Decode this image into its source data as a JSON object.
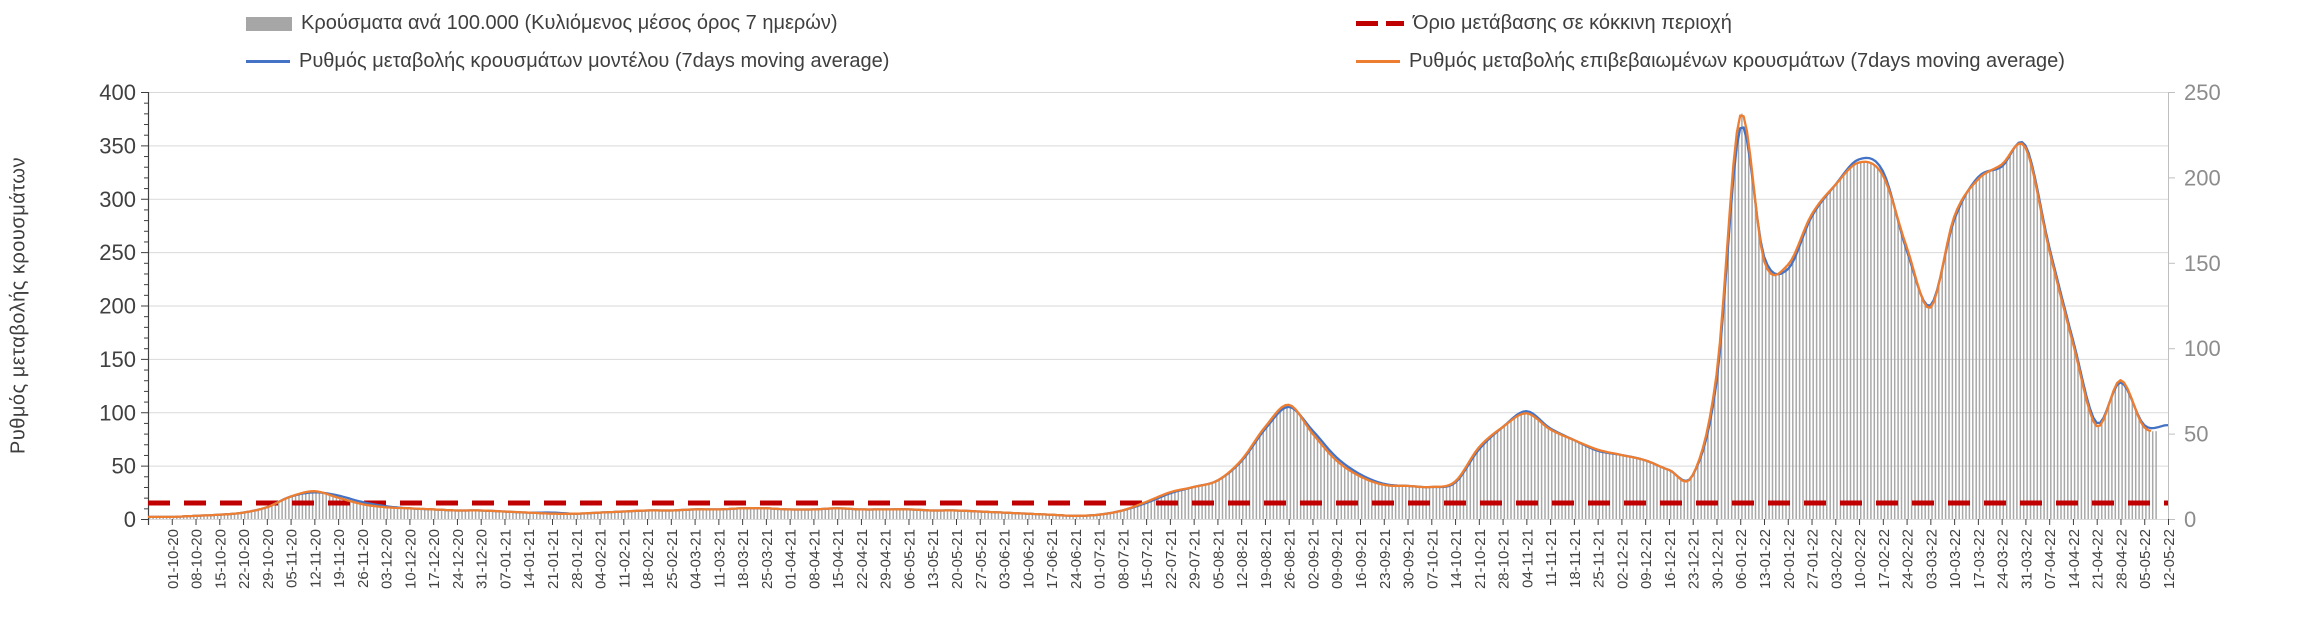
{
  "legend": {
    "items": [
      {
        "id": "cases-per-100k",
        "label": "Κρούσματα ανά 100.000 (Κυλιόμενος μέσος όρος 7 ημερών)",
        "swatch": "bar",
        "color": "#a6a6a6"
      },
      {
        "id": "model-rate",
        "label": "Ρυθμός μεταβολής κρουσμάτων μοντέλου (7days moving average)",
        "swatch": "line",
        "color": "#4472c4"
      },
      {
        "id": "red-zone-threshold",
        "label": "Όριο μετάβασης σε κόκκινη περιοχή",
        "swatch": "dash",
        "color": "#c00000"
      },
      {
        "id": "confirmed-rate",
        "label": "Ρυθμός μεταβολής επιβεβαιωμένων κρουσμάτων (7days moving average)",
        "swatch": "line",
        "color": "#ed7d31"
      }
    ]
  },
  "y_axis_left": {
    "title": "Ρυθμός μεταβολής κρουσμάτων",
    "min": 0,
    "max": 400,
    "step": 50,
    "ticks": [
      "0",
      "50",
      "100",
      "150",
      "200",
      "250",
      "300",
      "350",
      "400"
    ]
  },
  "y_axis_right": {
    "min": 0,
    "max": 250,
    "step": 50,
    "ticks": [
      "0",
      "50",
      "100",
      "150",
      "200",
      "250"
    ]
  },
  "chart_data": {
    "type": "combo",
    "title": "",
    "xlabel": "",
    "ylabel": "Ρυθμός μεταβολής κρουσμάτων",
    "ylim_left": [
      0,
      400
    ],
    "ylim_right": [
      0,
      250
    ],
    "grid": true,
    "legend_position": "top",
    "x_sampling": "weekly",
    "x": [
      "01-10-20",
      "08-10-20",
      "15-10-20",
      "22-10-20",
      "29-10-20",
      "05-11-20",
      "12-11-20",
      "19-11-20",
      "26-11-20",
      "03-12-20",
      "10-12-20",
      "17-12-20",
      "24-12-20",
      "31-12-20",
      "07-01-21",
      "14-01-21",
      "21-01-21",
      "28-01-21",
      "04-02-21",
      "11-02-21",
      "18-02-21",
      "25-02-21",
      "04-03-21",
      "11-03-21",
      "18-03-21",
      "25-03-21",
      "01-04-21",
      "08-04-21",
      "15-04-21",
      "22-04-21",
      "29-04-21",
      "06-05-21",
      "13-05-21",
      "20-05-21",
      "27-05-21",
      "03-06-21",
      "10-06-21",
      "17-06-21",
      "24-06-21",
      "01-07-21",
      "08-07-21",
      "15-07-21",
      "22-07-21",
      "29-07-21",
      "05-08-21",
      "12-08-21",
      "19-08-21",
      "26-08-21",
      "02-09-21",
      "09-09-21",
      "16-09-21",
      "23-09-21",
      "30-09-21",
      "07-10-21",
      "14-10-21",
      "21-10-21",
      "28-10-21",
      "04-11-21",
      "11-11-21",
      "18-11-21",
      "25-11-21",
      "02-12-21",
      "09-12-21",
      "16-12-21",
      "23-12-21",
      "30-12-21",
      "06-01-22",
      "13-01-22",
      "20-01-22",
      "27-01-22",
      "03-02-22",
      "10-02-22",
      "17-02-22",
      "24-02-22",
      "03-03-22",
      "10-03-22",
      "17-03-22",
      "24-03-22",
      "31-03-22",
      "07-04-22",
      "14-04-22",
      "21-04-22",
      "28-04-22",
      "05-05-22",
      "12-05-22"
    ],
    "series": [
      {
        "name": "Κρούσματα ανά 100.000 (Κυλιόμενος μέσος όρος 7 ημερών)",
        "type": "bar",
        "axis": "right",
        "color": "#a8a8a8",
        "values": [
          1.3,
          1.9,
          2.5,
          3.8,
          6.9,
          13.1,
          16.3,
          12.5,
          8.8,
          6.9,
          6.3,
          5.6,
          5,
          5,
          4.4,
          3.8,
          3.1,
          3.1,
          3.8,
          4.4,
          5,
          5,
          5.6,
          5.6,
          6.3,
          6.3,
          5.6,
          5.6,
          6.3,
          5.6,
          5.6,
          5.6,
          5,
          5,
          4.4,
          3.8,
          3.1,
          2.5,
          1.9,
          2.5,
          5,
          10,
          15.6,
          18.8,
          22.5,
          34.4,
          53.8,
          66.9,
          50,
          34.4,
          25,
          20,
          19.4,
          18.8,
          21.9,
          41.9,
          53.8,
          61.9,
          52.5,
          46.3,
          40.6,
          37.5,
          34.4,
          28.8,
          25.6,
          84.4,
          236.3,
          151.3,
          148.8,
          178.1,
          195.6,
          208.8,
          201.3,
          159.4,
          123.8,
          176.9,
          198.8,
          207.5,
          217.5,
          157.5,
          103.1,
          54.4,
          81.3,
          53.8,
          52.5
        ]
      },
      {
        "name": "Ρυθμός μεταβολής κρουσμάτων μοντέλου (7days moving average)",
        "type": "line",
        "axis": "left",
        "color": "#4472c4",
        "values": [
          2,
          3,
          4,
          6,
          11,
          21,
          25,
          22,
          16,
          12,
          10,
          9,
          8,
          8,
          7,
          6,
          6,
          5,
          6,
          7,
          8,
          8,
          9,
          9,
          10,
          10,
          9,
          9,
          10,
          9,
          9,
          9,
          8,
          8,
          7,
          6,
          5,
          4,
          3,
          4,
          8,
          15,
          24,
          30,
          36,
          54,
          84,
          105,
          83,
          58,
          42,
          33,
          31,
          30,
          34,
          65,
          86,
          101,
          85,
          74,
          64,
          60,
          55,
          46,
          41,
          128,
          366,
          246,
          234,
          283,
          313,
          337,
          326,
          252,
          200,
          280,
          320,
          330,
          350,
          255,
          168,
          90,
          128,
          88,
          88
        ]
      },
      {
        "name": "Ρυθμός μεταβολής επιβεβαιωμένων κρουσμάτων (7days moving average)",
        "type": "line",
        "axis": "left",
        "color": "#ed7d31",
        "values": [
          2,
          3,
          4,
          6,
          11,
          21,
          26,
          20,
          14,
          11,
          10,
          9,
          8,
          8,
          7,
          6,
          5,
          5,
          6,
          7,
          8,
          8,
          9,
          9,
          10,
          10,
          9,
          9,
          10,
          9,
          9,
          9,
          8,
          8,
          7,
          6,
          5,
          4,
          3,
          4,
          8,
          16,
          25,
          30,
          36,
          55,
          86,
          107,
          80,
          55,
          40,
          32,
          31,
          30,
          35,
          67,
          86,
          99,
          84,
          74,
          65,
          60,
          55,
          46,
          41,
          135,
          378,
          242,
          238,
          285,
          313,
          334,
          322,
          255,
          198,
          283,
          318,
          332,
          348,
          252,
          165,
          87,
          130,
          86,
          84
        ]
      },
      {
        "name": "Όριο μετάβασης σε κόκκινη περιοχή",
        "type": "threshold",
        "axis": "left",
        "color": "#c00000",
        "value": 15
      }
    ]
  },
  "colors": {
    "grid": "#d9d9d9",
    "axis_dark": "#3f3f3f",
    "axis_light": "#bfbfbf",
    "label_dark": "#404040",
    "label_light": "#8c8c8c",
    "background": "#ffffff"
  }
}
